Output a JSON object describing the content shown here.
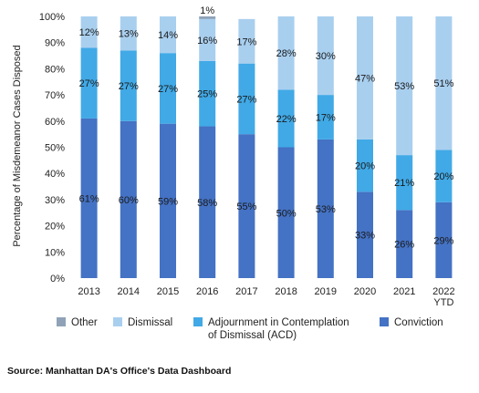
{
  "chart_data": {
    "type": "bar",
    "stacked": true,
    "percent": true,
    "categories": [
      "2013",
      "2014",
      "2015",
      "2016",
      "2017",
      "2018",
      "2019",
      "2020",
      "2021",
      "2022 YTD"
    ],
    "series": [
      {
        "name": "Conviction",
        "color": "#4472C4",
        "values": [
          61,
          60,
          59,
          58,
          55,
          50,
          53,
          33,
          26,
          29
        ]
      },
      {
        "name": "Adjournment in Contemplation of Dismissal (ACD)",
        "color": "#41A9E6",
        "values": [
          27,
          27,
          27,
          25,
          27,
          22,
          17,
          20,
          21,
          20
        ]
      },
      {
        "name": "Dismissal",
        "color": "#A9CFEF",
        "values": [
          12,
          13,
          14,
          16,
          17,
          28,
          30,
          47,
          53,
          51
        ]
      },
      {
        "name": "Other",
        "color": "#8FA2B8",
        "values": [
          0,
          0,
          0,
          1,
          0,
          0,
          0,
          0,
          0,
          0
        ]
      }
    ],
    "data_labels": [
      [
        "61%",
        "60%",
        "59%",
        "58%",
        "55%",
        "50%",
        "53%",
        "33%",
        "26%",
        "29%"
      ],
      [
        "27%",
        "27%",
        "27%",
        "25%",
        "27%",
        "22%",
        "17%",
        "20%",
        "21%",
        "20%"
      ],
      [
        "12%",
        "13%",
        "14%",
        "16%",
        "17%",
        "28%",
        "30%",
        "47%",
        "53%",
        "51%"
      ],
      [
        "",
        "",
        "",
        "1%",
        "",
        "",
        "",
        "",
        "",
        ""
      ]
    ],
    "ylabel": "Percentage of Misdemeanor Cases Disposed",
    "ylim": [
      0,
      100
    ],
    "yticks": [
      "0%",
      "10%",
      "20%",
      "30%",
      "40%",
      "50%",
      "60%",
      "70%",
      "80%",
      "90%",
      "100%"
    ],
    "legend_order": [
      "Other",
      "Dismissal",
      "Adjournment in Contemplation of Dismissal (ACD)",
      "Conviction"
    ],
    "legend_position": "bottom",
    "grid": false
  },
  "source": "Source: Manhattan DA's Office's Data Dashboard"
}
